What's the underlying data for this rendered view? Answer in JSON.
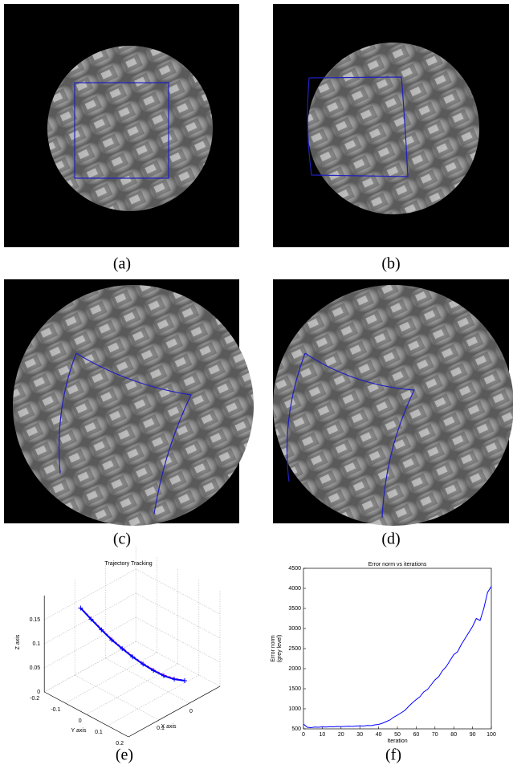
{
  "captions": [
    "(a)",
    "(b)",
    "(c)",
    "(d)",
    "(e)",
    "(f)"
  ],
  "chart_data": [
    {
      "type": "line3d",
      "title": "Trajectory Tracking",
      "xlabel": "X axis",
      "ylabel": "Y axis",
      "zlabel": "Z axis",
      "xlim": [
        -0.1,
        0.2
      ],
      "ylim": [
        -0.2,
        0.2
      ],
      "zlim": [
        0,
        0.2
      ],
      "xticks": [
        0,
        0.1
      ],
      "yticks": [
        -0.2,
        -0.1,
        0,
        0.1,
        0.2
      ],
      "zticks": [
        0,
        0.05,
        0.1,
        0.15
      ],
      "grid": true,
      "series": [
        {
          "color": "#e0007a",
          "x": [
            0.15,
            0.129,
            0.108,
            0.087,
            0.066,
            0.045,
            0.024,
            0.003,
            -0.018,
            -0.039,
            -0.06
          ],
          "y": [
            -0.1,
            -0.081,
            -0.062,
            -0.043,
            -0.024,
            -0.005,
            0.014,
            0.033,
            0.052,
            0.071,
            0.09
          ],
          "z": [
            0.18,
            0.155,
            0.13,
            0.106,
            0.085,
            0.065,
            0.047,
            0.031,
            0.017,
            0.007,
            0
          ]
        },
        {
          "color": "#0000ff",
          "x": [
            0.15,
            0.129,
            0.108,
            0.087,
            0.066,
            0.045,
            0.024,
            0.003,
            -0.018,
            -0.039,
            -0.06
          ],
          "y": [
            -0.1,
            -0.081,
            -0.062,
            -0.043,
            -0.024,
            -0.005,
            0.014,
            0.033,
            0.052,
            0.071,
            0.09
          ],
          "z": [
            0.18,
            0.154,
            0.129,
            0.105,
            0.084,
            0.064,
            0.046,
            0.03,
            0.016,
            0.006,
            0
          ]
        }
      ]
    },
    {
      "type": "line",
      "title": "Error norm vs iterations",
      "xlabel": "Iteration",
      "ylabel": [
        "Error norm",
        "(grey level)"
      ],
      "xlim": [
        0,
        100
      ],
      "ylim": [
        500,
        4500
      ],
      "xticks": [
        0,
        10,
        20,
        30,
        40,
        50,
        60,
        70,
        80,
        90,
        100
      ],
      "yticks": [
        500,
        1000,
        1500,
        2000,
        2500,
        3000,
        3500,
        4000,
        4500
      ],
      "x": [
        0,
        2,
        4,
        6,
        8,
        10,
        12,
        14,
        16,
        18,
        20,
        22,
        24,
        26,
        28,
        30,
        32,
        34,
        36,
        38,
        40,
        42,
        44,
        46,
        48,
        50,
        52,
        54,
        56,
        58,
        60,
        62,
        64,
        66,
        68,
        70,
        72,
        74,
        76,
        78,
        80,
        82,
        84,
        86,
        88,
        90,
        92,
        94,
        96,
        98,
        100
      ],
      "series": [
        {
          "color": "#0000ff",
          "values": [
            620,
            540,
            530,
            545,
            540,
            550,
            545,
            555,
            550,
            560,
            555,
            560,
            565,
            560,
            570,
            575,
            570,
            585,
            580,
            600,
            610,
            640,
            680,
            720,
            790,
            840,
            900,
            960,
            1060,
            1150,
            1230,
            1300,
            1420,
            1480,
            1600,
            1720,
            1800,
            1950,
            2050,
            2200,
            2350,
            2420,
            2600,
            2750,
            2900,
            3050,
            3250,
            3200,
            3500,
            3900,
            4050
          ]
        }
      ]
    }
  ]
}
